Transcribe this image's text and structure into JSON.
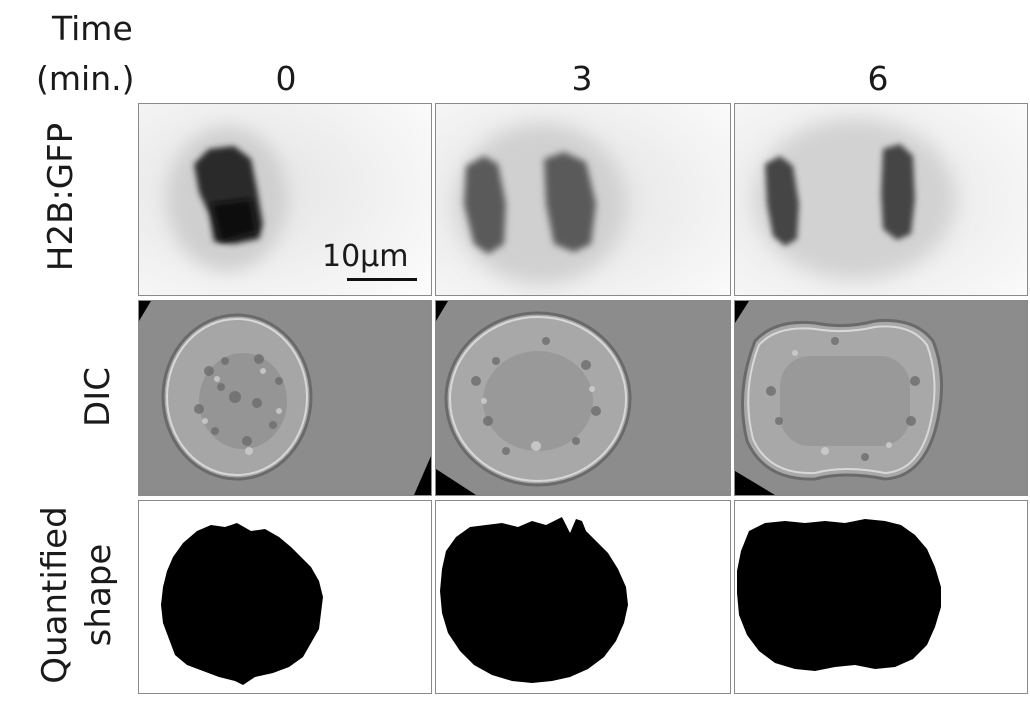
{
  "header": {
    "time_label": "Time",
    "unit_label": "(min.)",
    "columns": [
      "0",
      "3",
      "6"
    ]
  },
  "rows": {
    "fluorescence": "H2B:GFP",
    "dic": "DIC",
    "shape_line1": "Quantified",
    "shape_line2": "shape"
  },
  "scale_bar": {
    "label": "10μm"
  }
}
